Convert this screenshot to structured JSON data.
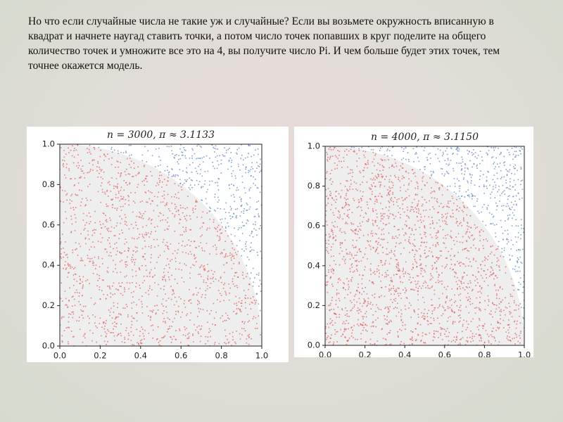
{
  "text": "Но что если случайные числа не такие уж и случайные? Если вы возьмете окружность вписанную в квадрат и начнете наугад ставить точки, а потом число точек попавших в круг поделите на общего количество точек и умножите все это на 4, вы получите число Pi. И чем больше будет этих точек, тем точнее окажется модель.",
  "chart_data": [
    {
      "type": "scatter",
      "title": "n = 3000, π ≈ 3.1133",
      "xlim": [
        0,
        1
      ],
      "ylim": [
        0,
        1
      ],
      "xticks": [
        {
          "value": 0,
          "label": "0.0"
        },
        {
          "value": 0.2,
          "label": "0.2"
        },
        {
          "value": 0.4,
          "label": "0.4"
        },
        {
          "value": 0.6,
          "label": "0.6"
        },
        {
          "value": 0.8,
          "label": "0.8"
        },
        {
          "value": 1,
          "label": "1.0"
        }
      ],
      "yticks": [
        {
          "value": 0,
          "label": "0.0"
        },
        {
          "value": 0.2,
          "label": "0.2"
        },
        {
          "value": 0.4,
          "label": "0.4"
        },
        {
          "value": 0.6,
          "label": "0.6"
        },
        {
          "value": 0.8,
          "label": "0.8"
        },
        {
          "value": 1,
          "label": "1.0"
        }
      ],
      "inside_color": "#e05a5a",
      "outside_color": "#5b84c4"
    },
    {
      "type": "scatter",
      "title": "n = 4000, π ≈ 3.1150",
      "xlim": [
        0,
        1
      ],
      "ylim": [
        0,
        1
      ],
      "xticks": [
        {
          "value": 0,
          "label": "0.0"
        },
        {
          "value": 0.2,
          "label": "0.2"
        },
        {
          "value": 0.4,
          "label": "0.4"
        },
        {
          "value": 0.6,
          "label": "0.6"
        },
        {
          "value": 0.8,
          "label": "0.8"
        },
        {
          "value": 1,
          "label": "1.0"
        }
      ],
      "yticks": [
        {
          "value": 0,
          "label": "0.0"
        },
        {
          "value": 0.2,
          "label": "0.2"
        },
        {
          "value": 0.4,
          "label": "0.4"
        },
        {
          "value": 0.6,
          "label": "0.6"
        },
        {
          "value": 0.8,
          "label": "0.8"
        },
        {
          "value": 1,
          "label": "1.0"
        }
      ],
      "inside_color": "#e05a5a",
      "outside_color": "#5b84c4"
    }
  ]
}
